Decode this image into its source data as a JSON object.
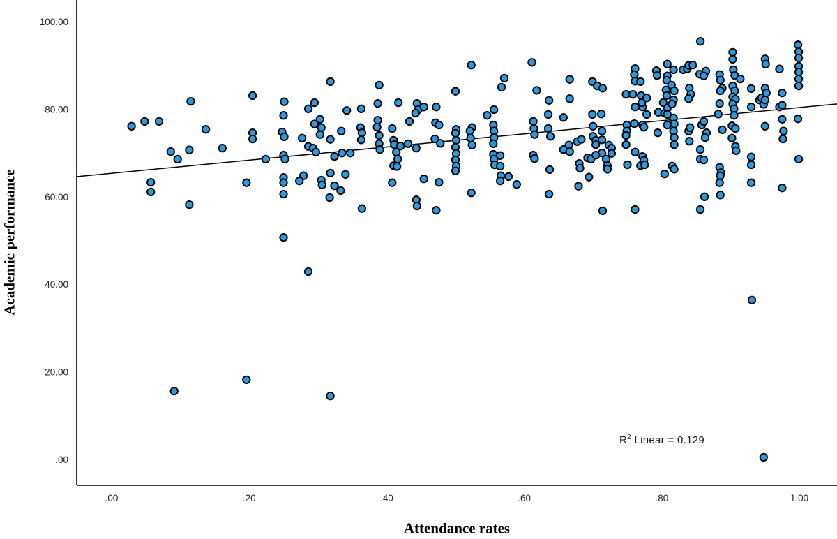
{
  "page": {
    "background": "#ffffff"
  },
  "chart_data": {
    "type": "scatter",
    "title": "",
    "xlabel": "Attendance rates",
    "ylabel": "Academic performance",
    "annotation": {
      "prefix": "R",
      "sup": "2",
      "rest": " Linear = 0.129"
    },
    "r_squared": 0.129,
    "legend": "none",
    "grid": false,
    "x_ticks": [
      {
        "label": ".00",
        "value": 0.0
      },
      {
        "label": ".20",
        "value": 0.2
      },
      {
        "label": ".40",
        "value": 0.4
      },
      {
        "label": ".60",
        "value": 0.6
      },
      {
        "label": ".80",
        "value": 0.8
      },
      {
        "label": "1.00",
        "value": 1.0
      }
    ],
    "y_ticks": [
      {
        "label": ".00",
        "value": 0
      },
      {
        "label": "20.00",
        "value": 20
      },
      {
        "label": "40.00",
        "value": 40
      },
      {
        "label": "60.00",
        "value": 60
      },
      {
        "label": "80.00",
        "value": 80
      },
      {
        "label": "100.00",
        "value": 100
      }
    ],
    "xlim": [
      -0.0507,
      1.0547
    ],
    "ylim": [
      -5.9,
      104.94
    ],
    "axis_color": "#000000",
    "tick_label_color": "#262626",
    "marker": {
      "fill": "#2B99E0",
      "stroke": "#000000",
      "radius": 5.2,
      "stroke_width": 1.9
    },
    "regression_line": {
      "x1": -0.0507,
      "y1": 64.6,
      "x2": 1.0547,
      "y2": 81.2,
      "color": "#000000",
      "width": 1.5
    },
    "points": [
      [
        0.029,
        76.1
      ],
      [
        0.048,
        77.2
      ],
      [
        0.069,
        77.2
      ],
      [
        0.091,
        15.6
      ],
      [
        0.086,
        70.3
      ],
      [
        0.096,
        68.6
      ],
      [
        0.057,
        63.3
      ],
      [
        0.057,
        61.1
      ],
      [
        0.115,
        81.8
      ],
      [
        0.113,
        70.7
      ],
      [
        0.113,
        58.2
      ],
      [
        0.137,
        75.4
      ],
      [
        0.161,
        71.1
      ],
      [
        0.196,
        18.2
      ],
      [
        0.196,
        63.2
      ],
      [
        0.205,
        83.1
      ],
      [
        0.205,
        74.6
      ],
      [
        0.205,
        73.2
      ],
      [
        0.224,
        68.6
      ],
      [
        0.25,
        78.6
      ],
      [
        0.251,
        81.7
      ],
      [
        0.248,
        74.8
      ],
      [
        0.251,
        73.7
      ],
      [
        0.25,
        69.5
      ],
      [
        0.252,
        68.6
      ],
      [
        0.25,
        64.4
      ],
      [
        0.25,
        63.2
      ],
      [
        0.25,
        60.6
      ],
      [
        0.25,
        50.7
      ],
      [
        0.286,
        42.9
      ],
      [
        0.286,
        80.1
      ],
      [
        0.295,
        81.5
      ],
      [
        0.277,
        73.4
      ],
      [
        0.279,
        64.8
      ],
      [
        0.273,
        63.6
      ],
      [
        0.286,
        71.5
      ],
      [
        0.293,
        71.1
      ],
      [
        0.297,
        70.2
      ],
      [
        0.303,
        77.7
      ],
      [
        0.295,
        76.6
      ],
      [
        0.305,
        75.8
      ],
      [
        0.303,
        74.2
      ],
      [
        0.318,
        86.3
      ],
      [
        0.318,
        73.1
      ],
      [
        0.318,
        65.4
      ],
      [
        0.305,
        63.8
      ],
      [
        0.306,
        62.7
      ],
      [
        0.317,
        59.8
      ],
      [
        0.318,
        14.5
      ],
      [
        0.324,
        69.2
      ],
      [
        0.324,
        62.5
      ],
      [
        0.333,
        61.4
      ],
      [
        0.334,
        75.0
      ],
      [
        0.335,
        70.0
      ],
      [
        0.34,
        65.1
      ],
      [
        0.342,
        79.7
      ],
      [
        0.347,
        70.0
      ],
      [
        0.362,
        75.8
      ],
      [
        0.364,
        74.6
      ],
      [
        0.363,
        73.0
      ],
      [
        0.363,
        80.1
      ],
      [
        0.364,
        57.3
      ],
      [
        0.389,
        85.5
      ],
      [
        0.387,
        81.3
      ],
      [
        0.387,
        77.5
      ],
      [
        0.386,
        75.9
      ],
      [
        0.389,
        74.0
      ],
      [
        0.389,
        72.1
      ],
      [
        0.39,
        70.8
      ],
      [
        0.408,
        75.6
      ],
      [
        0.408,
        63.2
      ],
      [
        0.41,
        72.9
      ],
      [
        0.411,
        71.9
      ],
      [
        0.42,
        71.6
      ],
      [
        0.414,
        70.2
      ],
      [
        0.416,
        68.6
      ],
      [
        0.41,
        67.1
      ],
      [
        0.415,
        66.9
      ],
      [
        0.417,
        81.5
      ],
      [
        0.433,
        77.2
      ],
      [
        0.431,
        72.1
      ],
      [
        0.443,
        71.1
      ],
      [
        0.444,
        81.3
      ],
      [
        0.446,
        79.9
      ],
      [
        0.454,
        80.5
      ],
      [
        0.442,
        79.1
      ],
      [
        0.454,
        64.1
      ],
      [
        0.443,
        59.3
      ],
      [
        0.444,
        57.9
      ],
      [
        0.472,
        80.5
      ],
      [
        0.47,
        73.2
      ],
      [
        0.478,
        72.2
      ],
      [
        0.471,
        76.9
      ],
      [
        0.476,
        76.4
      ],
      [
        0.476,
        63.3
      ],
      [
        0.472,
        56.9
      ],
      [
        0.5,
        84.1
      ],
      [
        0.501,
        75.4
      ],
      [
        0.5,
        74.5
      ],
      [
        0.501,
        72.9
      ],
      [
        0.5,
        71.3
      ],
      [
        0.501,
        69.9
      ],
      [
        0.5,
        68.4
      ],
      [
        0.501,
        67.0
      ],
      [
        0.5,
        65.9
      ],
      [
        0.523,
        90.1
      ],
      [
        0.524,
        75.8
      ],
      [
        0.521,
        75.0
      ],
      [
        0.522,
        73.4
      ],
      [
        0.524,
        71.8
      ],
      [
        0.523,
        60.9
      ],
      [
        0.546,
        78.6
      ],
      [
        0.556,
        79.9
      ],
      [
        0.555,
        76.4
      ],
      [
        0.556,
        75.0
      ],
      [
        0.556,
        73.5
      ],
      [
        0.555,
        72.1
      ],
      [
        0.555,
        69.7
      ],
      [
        0.556,
        68.6
      ],
      [
        0.557,
        67.3
      ],
      [
        0.565,
        69.4
      ],
      [
        0.565,
        67.0
      ],
      [
        0.566,
        64.8
      ],
      [
        0.565,
        63.6
      ],
      [
        0.567,
        85.0
      ],
      [
        0.571,
        87.1
      ],
      [
        0.577,
        64.6
      ],
      [
        0.589,
        62.8
      ],
      [
        0.611,
        90.7
      ],
      [
        0.613,
        77.2
      ],
      [
        0.614,
        75.6
      ],
      [
        0.615,
        74.2
      ],
      [
        0.613,
        69.5
      ],
      [
        0.615,
        68.7
      ],
      [
        0.618,
        84.3
      ],
      [
        0.636,
        82.0
      ],
      [
        0.635,
        78.8
      ],
      [
        0.635,
        75.6
      ],
      [
        0.638,
        73.8
      ],
      [
        0.637,
        66.2
      ],
      [
        0.636,
        60.6
      ],
      [
        0.657,
        78.1
      ],
      [
        0.657,
        70.8
      ],
      [
        0.665,
        71.8
      ],
      [
        0.666,
        86.8
      ],
      [
        0.666,
        82.4
      ],
      [
        0.666,
        70.3
      ],
      [
        0.677,
        72.6
      ],
      [
        0.683,
        73.1
      ],
      [
        0.68,
        67.6
      ],
      [
        0.681,
        66.5
      ],
      [
        0.679,
        62.4
      ],
      [
        0.694,
        64.5
      ],
      [
        0.692,
        68.9
      ],
      [
        0.697,
        68.6
      ],
      [
        0.699,
        86.3
      ],
      [
        0.699,
        78.8
      ],
      [
        0.7,
        76.1
      ],
      [
        0.706,
        85.3
      ],
      [
        0.714,
        84.8
      ],
      [
        0.713,
        75.0
      ],
      [
        0.7,
        73.8
      ],
      [
        0.704,
        72.9
      ],
      [
        0.704,
        71.9
      ],
      [
        0.713,
        73.0
      ],
      [
        0.723,
        71.8
      ],
      [
        0.727,
        71.1
      ],
      [
        0.727,
        69.9
      ],
      [
        0.713,
        70.0
      ],
      [
        0.704,
        69.5
      ],
      [
        0.719,
        68.6
      ],
      [
        0.721,
        67.1
      ],
      [
        0.721,
        66.3
      ],
      [
        0.712,
        78.9
      ],
      [
        0.714,
        56.8
      ],
      [
        0.748,
        83.4
      ],
      [
        0.758,
        83.4
      ],
      [
        0.749,
        76.4
      ],
      [
        0.749,
        75.0
      ],
      [
        0.748,
        74.0
      ],
      [
        0.748,
        71.9
      ],
      [
        0.75,
        67.3
      ],
      [
        0.761,
        89.3
      ],
      [
        0.76,
        87.9
      ],
      [
        0.761,
        86.4
      ],
      [
        0.769,
        86.3
      ],
      [
        0.76,
        76.7
      ],
      [
        0.761,
        80.5
      ],
      [
        0.772,
        80.5
      ],
      [
        0.77,
        83.1
      ],
      [
        0.771,
        81.5
      ],
      [
        0.778,
        82.6
      ],
      [
        0.772,
        76.4
      ],
      [
        0.774,
        75.9
      ],
      [
        0.761,
        70.2
      ],
      [
        0.772,
        69.2
      ],
      [
        0.774,
        68.3
      ],
      [
        0.769,
        67.1
      ],
      [
        0.775,
        67.3
      ],
      [
        0.778,
        78.8
      ],
      [
        0.761,
        57.1
      ],
      [
        0.792,
        88.8
      ],
      [
        0.793,
        87.7
      ],
      [
        0.794,
        74.6
      ],
      [
        0.795,
        79.3
      ],
      [
        0.804,
        79.1
      ],
      [
        0.802,
        81.5
      ],
      [
        0.808,
        90.3
      ],
      [
        0.808,
        87.6
      ],
      [
        0.807,
        86.6
      ],
      [
        0.806,
        84.4
      ],
      [
        0.807,
        83.1
      ],
      [
        0.808,
        80.2
      ],
      [
        0.808,
        78.8
      ],
      [
        0.808,
        76.4
      ],
      [
        0.804,
        65.2
      ],
      [
        0.817,
        89.0
      ],
      [
        0.814,
        85.5
      ],
      [
        0.818,
        84.2
      ],
      [
        0.817,
        82.1
      ],
      [
        0.815,
        81.2
      ],
      [
        0.817,
        78.0
      ],
      [
        0.818,
        76.6
      ],
      [
        0.817,
        75.0
      ],
      [
        0.818,
        73.5
      ],
      [
        0.818,
        71.9
      ],
      [
        0.815,
        67.0
      ],
      [
        0.818,
        66.3
      ],
      [
        0.831,
        89.0
      ],
      [
        0.837,
        89.2
      ],
      [
        0.839,
        90.0
      ],
      [
        0.845,
        90.1
      ],
      [
        0.84,
        84.8
      ],
      [
        0.842,
        83.4
      ],
      [
        0.839,
        82.4
      ],
      [
        0.839,
        75.0
      ],
      [
        0.841,
        75.8
      ],
      [
        0.84,
        72.7
      ],
      [
        0.856,
        95.5
      ],
      [
        0.855,
        88.0
      ],
      [
        0.864,
        88.7
      ],
      [
        0.861,
        87.6
      ],
      [
        0.856,
        70.8
      ],
      [
        0.856,
        68.6
      ],
      [
        0.861,
        68.4
      ],
      [
        0.858,
        76.4
      ],
      [
        0.861,
        77.2
      ],
      [
        0.865,
        74.6
      ],
      [
        0.863,
        73.5
      ],
      [
        0.862,
        60.0
      ],
      [
        0.856,
        57.1
      ],
      [
        0.884,
        87.9
      ],
      [
        0.885,
        86.6
      ],
      [
        0.888,
        84.8
      ],
      [
        0.885,
        84.2
      ],
      [
        0.884,
        81.3
      ],
      [
        0.882,
        78.9
      ],
      [
        0.888,
        75.3
      ],
      [
        0.884,
        66.7
      ],
      [
        0.886,
        65.5
      ],
      [
        0.885,
        64.8
      ],
      [
        0.884,
        63.2
      ],
      [
        0.885,
        60.4
      ],
      [
        0.903,
        93.0
      ],
      [
        0.903,
        91.4
      ],
      [
        0.904,
        89.0
      ],
      [
        0.906,
        87.7
      ],
      [
        0.914,
        86.9
      ],
      [
        0.903,
        85.3
      ],
      [
        0.906,
        84.2
      ],
      [
        0.903,
        82.8
      ],
      [
        0.907,
        82.3
      ],
      [
        0.903,
        81.2
      ],
      [
        0.905,
        80.1
      ],
      [
        0.905,
        78.6
      ],
      [
        0.902,
        76.2
      ],
      [
        0.907,
        75.6
      ],
      [
        0.902,
        73.4
      ],
      [
        0.907,
        71.5
      ],
      [
        0.908,
        70.5
      ],
      [
        0.93,
        84.7
      ],
      [
        0.93,
        80.5
      ],
      [
        0.93,
        69.1
      ],
      [
        0.93,
        67.3
      ],
      [
        0.93,
        63.2
      ],
      [
        0.931,
        36.4
      ],
      [
        0.942,
        82.1
      ],
      [
        0.945,
        82.6
      ],
      [
        0.948,
        81.1
      ],
      [
        0.95,
        91.5
      ],
      [
        0.951,
        90.3
      ],
      [
        0.95,
        84.8
      ],
      [
        0.952,
        83.7
      ],
      [
        0.95,
        82.1
      ],
      [
        0.95,
        76.1
      ],
      [
        0.948,
        0.5
      ],
      [
        0.971,
        89.2
      ],
      [
        0.975,
        83.7
      ],
      [
        0.971,
        80.5
      ],
      [
        0.975,
        80.9
      ],
      [
        0.975,
        77.7
      ],
      [
        0.977,
        75.0
      ],
      [
        0.976,
        73.2
      ],
      [
        0.975,
        62.0
      ],
      [
        0.998,
        94.7
      ],
      [
        0.999,
        93.1
      ],
      [
        0.999,
        91.7
      ],
      [
        0.999,
        89.8
      ],
      [
        0.999,
        88.5
      ],
      [
        0.999,
        86.9
      ],
      [
        0.999,
        85.3
      ],
      [
        0.998,
        77.8
      ],
      [
        0.999,
        68.6
      ]
    ]
  }
}
